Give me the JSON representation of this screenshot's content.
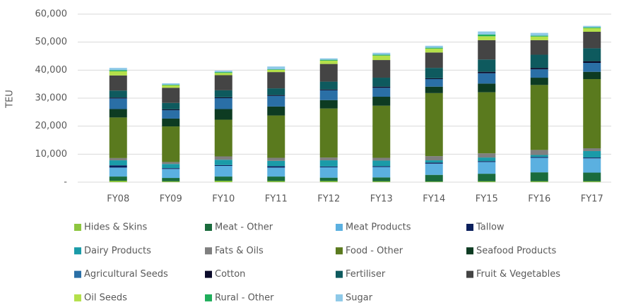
{
  "chart_data": {
    "type": "stacked_bar",
    "y_label": "TEU",
    "categories": [
      "FY08",
      "FY09",
      "FY10",
      "FY11",
      "FY12",
      "FY13",
      "FY14",
      "FY15",
      "FY16",
      "FY17"
    ],
    "series": [
      {
        "name": "Hides & Skins",
        "color": "#8dc63f",
        "values": [
          500,
          300,
          500,
          400,
          400,
          300,
          200,
          300,
          300,
          300
        ]
      },
      {
        "name": "Meat - Other",
        "color": "#1a6b3c",
        "values": [
          1500,
          1200,
          1500,
          1600,
          1200,
          1400,
          2400,
          2700,
          3200,
          3100
        ]
      },
      {
        "name": "Meat Products",
        "color": "#5bb0e0",
        "values": [
          3200,
          3200,
          3800,
          3200,
          3700,
          3700,
          4000,
          4200,
          5200,
          5100
        ]
      },
      {
        "name": "Tallow",
        "color": "#0a1f5c",
        "values": [
          800,
          300,
          300,
          500,
          300,
          300,
          400,
          300,
          300,
          300
        ]
      },
      {
        "name": "Dairy Products",
        "color": "#1a9ba8",
        "values": [
          1800,
          1500,
          1900,
          1900,
          2200,
          2000,
          800,
          1300,
          700,
          2300
        ]
      },
      {
        "name": "Fats & Oils",
        "color": "#7f7f7f",
        "values": [
          800,
          700,
          1200,
          1100,
          1000,
          1000,
          1500,
          1500,
          1800,
          1000
        ]
      },
      {
        "name": "Food - Other",
        "color": "#5a7a1e",
        "values": [
          14500,
          12700,
          13100,
          15100,
          17500,
          18600,
          22500,
          21800,
          23200,
          24700
        ]
      },
      {
        "name": "Seafood Products",
        "color": "#0d3b22",
        "values": [
          3000,
          2800,
          3800,
          3200,
          3000,
          3200,
          2300,
          3100,
          2600,
          2600
        ]
      },
      {
        "name": "Agricultural Seeds",
        "color": "#2a6fa6",
        "values": [
          3800,
          3000,
          3900,
          3800,
          3500,
          3200,
          2700,
          3700,
          3000,
          3200
        ]
      },
      {
        "name": "Cotton",
        "color": "#0a0a2a",
        "values": [
          300,
          300,
          300,
          300,
          300,
          400,
          300,
          500,
          500,
          600
        ]
      },
      {
        "name": "Fertiliser",
        "color": "#0e5a5e",
        "values": [
          2500,
          2300,
          2500,
          2400,
          2800,
          3200,
          3700,
          4400,
          4700,
          4600
        ]
      },
      {
        "name": "Fruit & Vegetables",
        "color": "#444444",
        "values": [
          5400,
          5400,
          5400,
          5800,
          6300,
          6300,
          5500,
          6900,
          5200,
          5900
        ]
      },
      {
        "name": "Oil Seeds",
        "color": "#b4e04a",
        "values": [
          1500,
          900,
          800,
          800,
          1200,
          1600,
          1400,
          1400,
          1300,
          1300
        ]
      },
      {
        "name": "Rural - Other",
        "color": "#1fae5b",
        "values": [
          400,
          200,
          300,
          200,
          300,
          300,
          300,
          600,
          300,
          300
        ]
      },
      {
        "name": "Sugar",
        "color": "#8ec9e8",
        "values": [
          800,
          500,
          500,
          1000,
          500,
          700,
          700,
          1100,
          1000,
          500
        ]
      }
    ],
    "ylim": [
      0,
      60000
    ],
    "yticks": [
      {
        "value": 0,
        "label": "-"
      },
      {
        "value": 10000,
        "label": "10,000"
      },
      {
        "value": 20000,
        "label": "20,000"
      },
      {
        "value": 30000,
        "label": "30,000"
      },
      {
        "value": 40000,
        "label": "40,000"
      },
      {
        "value": 50000,
        "label": "50,000"
      },
      {
        "value": 60000,
        "label": "60,000"
      }
    ],
    "grid": true
  }
}
